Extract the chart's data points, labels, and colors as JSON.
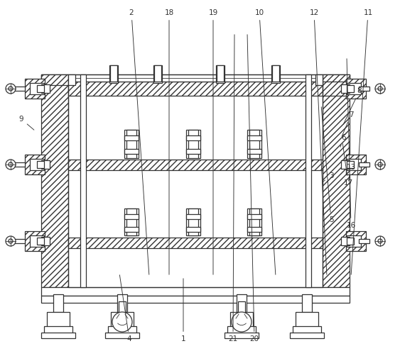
{
  "bg_color": "#ffffff",
  "line_color": "#333333",
  "fig_width": 5.63,
  "fig_height": 4.95,
  "dpi": 100,
  "labels_info": [
    [
      "1",
      258,
      478,
      258,
      390
    ],
    [
      "2",
      185,
      18,
      210,
      390
    ],
    [
      "3",
      466,
      248,
      452,
      258
    ],
    [
      "4",
      182,
      478,
      168,
      385
    ],
    [
      "5",
      466,
      310,
      452,
      148
    ],
    [
      "6",
      484,
      194,
      478,
      210
    ],
    [
      "7",
      494,
      162,
      480,
      195
    ],
    [
      "8",
      506,
      128,
      482,
      178
    ],
    [
      "9",
      30,
      168,
      50,
      185
    ],
    [
      "10",
      365,
      18,
      388,
      390
    ],
    [
      "11",
      518,
      18,
      494,
      390
    ],
    [
      "12",
      442,
      18,
      460,
      390
    ],
    [
      "13",
      494,
      236,
      490,
      258
    ],
    [
      "16",
      494,
      318,
      488,
      80
    ],
    [
      "17",
      490,
      258,
      482,
      200
    ],
    [
      "18",
      238,
      18,
      238,
      390
    ],
    [
      "19",
      300,
      18,
      300,
      390
    ],
    [
      "20",
      358,
      478,
      348,
      46
    ],
    [
      "21",
      328,
      478,
      330,
      46
    ]
  ]
}
